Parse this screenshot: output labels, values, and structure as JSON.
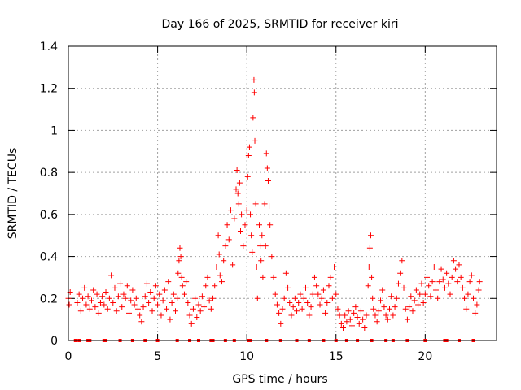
{
  "chart_data": {
    "type": "scatter",
    "title": "Day 166 of 2025, SRMTID for receiver kiri",
    "xlabel": "GPS time / hours",
    "ylabel": "SRMTID / TECUs",
    "xlim": [
      0,
      24
    ],
    "ylim": [
      0,
      1.4
    ],
    "x_ticks": [
      0,
      5,
      10,
      15,
      20
    ],
    "x_tick_labels": [
      "0",
      "5",
      "10",
      "15",
      "20"
    ],
    "y_ticks": [
      0,
      0.2,
      0.4,
      0.6,
      0.8,
      1.0,
      1.2,
      1.4
    ],
    "y_tick_labels": [
      "0",
      "0.2",
      "0.4",
      "0.6",
      "0.8",
      "1",
      "1.2",
      "1.4"
    ],
    "grid": true,
    "marker": "+",
    "color": "#ff0000",
    "series": [
      {
        "name": "SRMTID",
        "points": [
          [
            0.0,
            0.2
          ],
          [
            0.05,
            0.17
          ],
          [
            0.1,
            0.23
          ],
          [
            0.5,
            0.18
          ],
          [
            0.6,
            0.22
          ],
          [
            0.7,
            0.14
          ],
          [
            0.8,
            0.2
          ],
          [
            0.9,
            0.25
          ],
          [
            1.0,
            0.17
          ],
          [
            1.1,
            0.21
          ],
          [
            1.2,
            0.15
          ],
          [
            1.3,
            0.19
          ],
          [
            1.4,
            0.24
          ],
          [
            1.5,
            0.16
          ],
          [
            1.6,
            0.22
          ],
          [
            1.7,
            0.13
          ],
          [
            1.8,
            0.18
          ],
          [
            1.9,
            0.21
          ],
          [
            2.0,
            0.17
          ],
          [
            2.1,
            0.23
          ],
          [
            2.2,
            0.15
          ],
          [
            2.3,
            0.2
          ],
          [
            2.4,
            0.31
          ],
          [
            2.5,
            0.18
          ],
          [
            2.6,
            0.25
          ],
          [
            2.7,
            0.14
          ],
          [
            2.8,
            0.21
          ],
          [
            2.9,
            0.27
          ],
          [
            3.0,
            0.16
          ],
          [
            3.1,
            0.22
          ],
          [
            3.2,
            0.2
          ],
          [
            3.3,
            0.26
          ],
          [
            3.4,
            0.13
          ],
          [
            3.5,
            0.19
          ],
          [
            3.6,
            0.24
          ],
          [
            3.7,
            0.17
          ],
          [
            3.8,
            0.2
          ],
          [
            3.9,
            0.15
          ],
          [
            4.0,
            0.12
          ],
          [
            4.1,
            0.09
          ],
          [
            4.2,
            0.16
          ],
          [
            4.3,
            0.21
          ],
          [
            4.4,
            0.27
          ],
          [
            4.5,
            0.18
          ],
          [
            4.6,
            0.23
          ],
          [
            4.7,
            0.14
          ],
          [
            4.8,
            0.2
          ],
          [
            4.9,
            0.26
          ],
          [
            5.0,
            0.17
          ],
          [
            5.1,
            0.22
          ],
          [
            5.2,
            0.12
          ],
          [
            5.3,
            0.19
          ],
          [
            5.4,
            0.24
          ],
          [
            5.5,
            0.15
          ],
          [
            5.6,
            0.28
          ],
          [
            5.7,
            0.1
          ],
          [
            5.8,
            0.18
          ],
          [
            5.9,
            0.22
          ],
          [
            6.0,
            0.14
          ],
          [
            6.1,
            0.2
          ],
          [
            6.15,
            0.32
          ],
          [
            6.2,
            0.38
          ],
          [
            6.25,
            0.44
          ],
          [
            6.3,
            0.4
          ],
          [
            6.35,
            0.3
          ],
          [
            6.4,
            0.26
          ],
          [
            6.5,
            0.22
          ],
          [
            6.6,
            0.28
          ],
          [
            6.7,
            0.18
          ],
          [
            6.8,
            0.12
          ],
          [
            6.9,
            0.08
          ],
          [
            7.0,
            0.15
          ],
          [
            7.1,
            0.2
          ],
          [
            7.2,
            0.11
          ],
          [
            7.3,
            0.17
          ],
          [
            7.4,
            0.14
          ],
          [
            7.5,
            0.21
          ],
          [
            7.6,
            0.16
          ],
          [
            7.7,
            0.26
          ],
          [
            7.8,
            0.3
          ],
          [
            7.9,
            0.19
          ],
          [
            8.0,
            0.15
          ],
          [
            8.1,
            0.2
          ],
          [
            8.2,
            0.26
          ],
          [
            8.3,
            0.35
          ],
          [
            8.4,
            0.5
          ],
          [
            8.45,
            0.41
          ],
          [
            8.5,
            0.31
          ],
          [
            8.6,
            0.28
          ],
          [
            8.7,
            0.38
          ],
          [
            8.8,
            0.45
          ],
          [
            8.9,
            0.55
          ],
          [
            9.0,
            0.48
          ],
          [
            9.1,
            0.62
          ],
          [
            9.2,
            0.36
          ],
          [
            9.3,
            0.58
          ],
          [
            9.4,
            0.72
          ],
          [
            9.45,
            0.81
          ],
          [
            9.5,
            0.7
          ],
          [
            9.55,
            0.65
          ],
          [
            9.6,
            0.75
          ],
          [
            9.65,
            0.52
          ],
          [
            9.7,
            0.6
          ],
          [
            9.8,
            0.45
          ],
          [
            9.9,
            0.55
          ],
          [
            10.0,
            0.62
          ],
          [
            10.05,
            0.78
          ],
          [
            10.1,
            0.88
          ],
          [
            10.15,
            0.92
          ],
          [
            10.2,
            0.6
          ],
          [
            10.25,
            0.5
          ],
          [
            10.3,
            0.42
          ],
          [
            10.35,
            1.06
          ],
          [
            10.4,
            1.24
          ],
          [
            10.42,
            1.18
          ],
          [
            10.45,
            0.95
          ],
          [
            10.5,
            0.65
          ],
          [
            10.55,
            0.35
          ],
          [
            10.6,
            0.2
          ],
          [
            10.7,
            0.55
          ],
          [
            10.75,
            0.45
          ],
          [
            10.8,
            0.38
          ],
          [
            10.85,
            0.5
          ],
          [
            10.9,
            0.3
          ],
          [
            11.0,
            0.65
          ],
          [
            11.05,
            0.45
          ],
          [
            11.1,
            0.89
          ],
          [
            11.15,
            0.82
          ],
          [
            11.2,
            0.76
          ],
          [
            11.25,
            0.64
          ],
          [
            11.3,
            0.55
          ],
          [
            11.4,
            0.4
          ],
          [
            11.5,
            0.3
          ],
          [
            11.6,
            0.22
          ],
          [
            11.7,
            0.17
          ],
          [
            11.8,
            0.13
          ],
          [
            11.9,
            0.08
          ],
          [
            12.0,
            0.15
          ],
          [
            12.1,
            0.2
          ],
          [
            12.2,
            0.32
          ],
          [
            12.3,
            0.25
          ],
          [
            12.4,
            0.18
          ],
          [
            12.5,
            0.12
          ],
          [
            12.6,
            0.16
          ],
          [
            12.7,
            0.2
          ],
          [
            12.8,
            0.14
          ],
          [
            12.9,
            0.18
          ],
          [
            13.0,
            0.22
          ],
          [
            13.1,
            0.15
          ],
          [
            13.2,
            0.2
          ],
          [
            13.3,
            0.25
          ],
          [
            13.4,
            0.18
          ],
          [
            13.5,
            0.12
          ],
          [
            13.6,
            0.16
          ],
          [
            13.7,
            0.22
          ],
          [
            13.8,
            0.3
          ],
          [
            13.9,
            0.26
          ],
          [
            14.0,
            0.22
          ],
          [
            14.1,
            0.17
          ],
          [
            14.2,
            0.2
          ],
          [
            14.3,
            0.24
          ],
          [
            14.4,
            0.13
          ],
          [
            14.5,
            0.18
          ],
          [
            14.6,
            0.26
          ],
          [
            14.7,
            0.3
          ],
          [
            14.8,
            0.2
          ],
          [
            14.9,
            0.35
          ],
          [
            15.0,
            0.22
          ],
          [
            15.1,
            0.15
          ],
          [
            15.2,
            0.12
          ],
          [
            15.3,
            0.08
          ],
          [
            15.4,
            0.06
          ],
          [
            15.5,
            0.12
          ],
          [
            15.6,
            0.09
          ],
          [
            15.7,
            0.14
          ],
          [
            15.8,
            0.1
          ],
          [
            15.9,
            0.07
          ],
          [
            16.0,
            0.13
          ],
          [
            16.1,
            0.16
          ],
          [
            16.2,
            0.11
          ],
          [
            16.3,
            0.08
          ],
          [
            16.4,
            0.14
          ],
          [
            16.5,
            0.1
          ],
          [
            16.6,
            0.06
          ],
          [
            16.7,
            0.12
          ],
          [
            16.8,
            0.26
          ],
          [
            16.85,
            0.35
          ],
          [
            16.9,
            0.44
          ],
          [
            16.95,
            0.5
          ],
          [
            17.0,
            0.3
          ],
          [
            17.05,
            0.2
          ],
          [
            17.1,
            0.15
          ],
          [
            17.2,
            0.12
          ],
          [
            17.3,
            0.09
          ],
          [
            17.4,
            0.14
          ],
          [
            17.5,
            0.19
          ],
          [
            17.6,
            0.24
          ],
          [
            17.7,
            0.16
          ],
          [
            17.8,
            0.12
          ],
          [
            17.9,
            0.1
          ],
          [
            18.0,
            0.15
          ],
          [
            18.1,
            0.21
          ],
          [
            18.2,
            0.12
          ],
          [
            18.3,
            0.16
          ],
          [
            18.4,
            0.2
          ],
          [
            18.5,
            0.27
          ],
          [
            18.6,
            0.32
          ],
          [
            18.7,
            0.38
          ],
          [
            18.8,
            0.25
          ],
          [
            18.9,
            0.15
          ],
          [
            19.0,
            0.1
          ],
          [
            19.1,
            0.16
          ],
          [
            19.2,
            0.21
          ],
          [
            19.3,
            0.14
          ],
          [
            19.4,
            0.19
          ],
          [
            19.5,
            0.24
          ],
          [
            19.6,
            0.17
          ],
          [
            19.7,
            0.22
          ],
          [
            19.8,
            0.27
          ],
          [
            19.9,
            0.18
          ],
          [
            20.0,
            0.22
          ],
          [
            20.1,
            0.3
          ],
          [
            20.2,
            0.26
          ],
          [
            20.3,
            0.21
          ],
          [
            20.4,
            0.28
          ],
          [
            20.5,
            0.35
          ],
          [
            20.6,
            0.24
          ],
          [
            20.7,
            0.2
          ],
          [
            20.8,
            0.28
          ],
          [
            20.9,
            0.34
          ],
          [
            21.0,
            0.29
          ],
          [
            21.1,
            0.25
          ],
          [
            21.2,
            0.32
          ],
          [
            21.3,
            0.27
          ],
          [
            21.4,
            0.22
          ],
          [
            21.5,
            0.3
          ],
          [
            21.6,
            0.38
          ],
          [
            21.7,
            0.34
          ],
          [
            21.8,
            0.28
          ],
          [
            21.9,
            0.36
          ],
          [
            22.0,
            0.3
          ],
          [
            22.1,
            0.25
          ],
          [
            22.2,
            0.2
          ],
          [
            22.3,
            0.15
          ],
          [
            22.4,
            0.22
          ],
          [
            22.5,
            0.28
          ],
          [
            22.6,
            0.31
          ],
          [
            22.7,
            0.2
          ],
          [
            22.8,
            0.13
          ],
          [
            22.9,
            0.17
          ],
          [
            23.0,
            0.24
          ],
          [
            23.05,
            0.28
          ]
        ]
      }
    ],
    "baseline_markers": [
      0.4,
      0.6,
      1.1,
      1.2,
      2.0,
      2.1,
      2.9,
      3.6,
      4.3,
      5.0,
      6.1,
      6.8,
      7.3,
      8.0,
      8.1,
      8.8,
      9.3,
      10.1,
      10.2,
      11.1,
      11.9,
      12.8,
      13.5,
      14.3,
      15.0,
      15.6,
      16.2,
      17.0,
      17.8,
      18.2,
      19.0,
      20.0,
      21.1,
      21.2,
      21.9,
      22.7
    ]
  }
}
